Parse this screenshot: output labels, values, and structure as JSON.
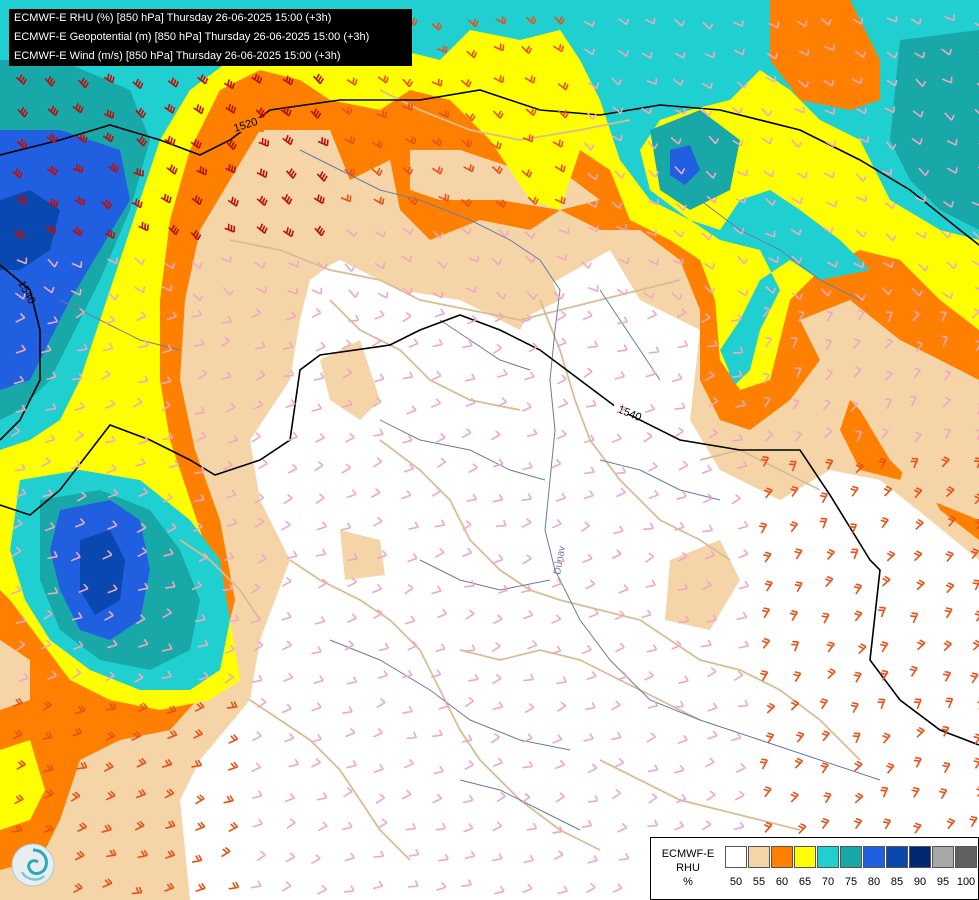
{
  "title_lines": [
    "ECMWF-E RHU (%) [850 hPa] Thursday 26-06-2025 15:00 (+3h)",
    "ECMWF-E Geopotential (m) [850 hPa] Thursday 26-06-2025 15:00 (+3h)",
    "ECMWF-E Wind (m/s) [850 hPa] Thursday 26-06-2025 15:00 (+3h)"
  ],
  "contour_labels": [
    "1520",
    "1540",
    "1540"
  ],
  "river_label": "Dunav",
  "legend": {
    "label_lines": [
      "ECMWF-E",
      "RHU",
      "%"
    ],
    "ticks": [
      "50",
      "55",
      "60",
      "65",
      "70",
      "75",
      "80",
      "85",
      "90",
      "95",
      "100"
    ],
    "colors": [
      "#ffffff",
      "#f5d5a8",
      "#ff8000",
      "#ffff00",
      "#20d0d0",
      "#18a8a8",
      "#2060e0",
      "#0848b0",
      "#002870",
      "#a8a8a8",
      "#606060"
    ]
  },
  "colors": {
    "rh_55": "#f5d5a8",
    "rh_60": "#ff8000",
    "rh_65": "#ffff00",
    "rh_70": "#20d0d0",
    "rh_75": "#18a8a8",
    "rh_80": "#2060e0",
    "rh_85": "#0848b0",
    "rh_90": "#002870",
    "borders": "#d8bc94",
    "rivers": "#6a7aa8",
    "geopotential_contour": "#000000",
    "wind_barb_light": "#f0a8c0",
    "wind_barb_medium": "#e85018",
    "wind_barb_strong": "#b81010"
  },
  "logo_icon": "dhmz-swirl-logo-icon"
}
